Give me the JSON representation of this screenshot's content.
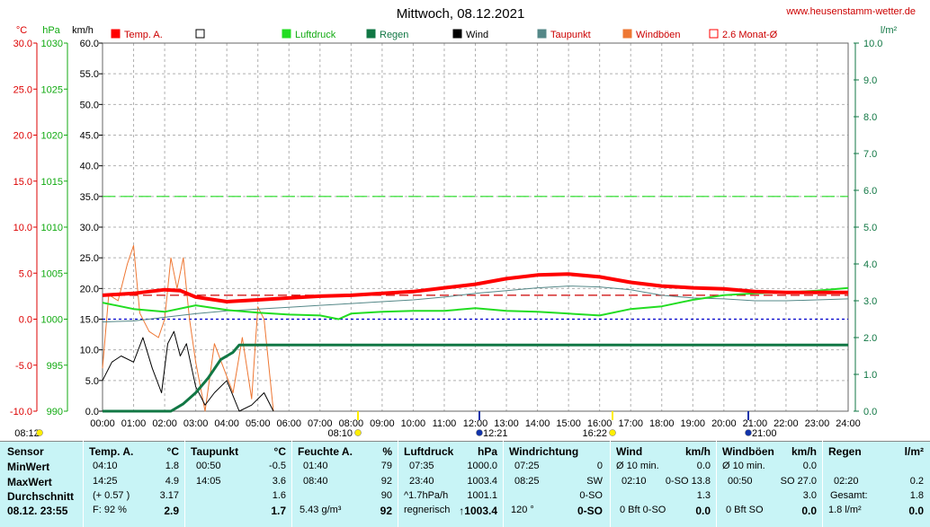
{
  "title": "Mittwoch, 08.12.2021",
  "site": "www.heusenstamm-wetter.de",
  "units": {
    "temp": "°C",
    "pressure": "hPa",
    "wind": "km/h",
    "rain": "l/m²"
  },
  "legend": [
    {
      "label": "Temp. A.",
      "color": "#ff0000",
      "fill": true
    },
    {
      "label": "",
      "color": "#000000",
      "fill": false
    },
    {
      "label": "Luftdruck",
      "color": "#22dd22",
      "fill": true
    },
    {
      "label": "Regen",
      "color": "#117744",
      "fill": true
    },
    {
      "label": "Wind",
      "color": "#000000",
      "fill": true
    },
    {
      "label": "Taupunkt",
      "color": "#558888",
      "fill": true
    },
    {
      "label": "Windböen",
      "color": "#ee7733",
      "fill": true
    },
    {
      "label": "2.6 Monat-Ø",
      "color": "#ff0000",
      "fill": false
    }
  ],
  "events": [
    {
      "label": "08:12",
      "color": "#ffee00"
    },
    {
      "label": "08:10",
      "color": "#ffee00"
    },
    {
      "label": "12:21",
      "color": "#1133aa"
    },
    {
      "label": "16:22",
      "color": "#ffee00"
    },
    {
      "label": "21:00",
      "color": "#1133aa"
    }
  ],
  "stats": {
    "sensor": {
      "head": "Sensor",
      "min": "MinWert",
      "max": "MaxWert",
      "avg": "Durchschnitt",
      "date": "08.12. 23:55"
    },
    "temp": {
      "head": "Temp. A.",
      "unit": "°C",
      "min_t": "04:10",
      "min": "1.8",
      "max_t": "14:25",
      "max": "4.9",
      "avg_d": "(+ 0.57 )",
      "avg": "3.17",
      "hum": "F: 92 %",
      "cur": "2.9"
    },
    "dew": {
      "head": "Taupunkt",
      "unit": "°C",
      "min_t": "00:50",
      "min": "-0.5",
      "max_t": "14:05",
      "max": "3.6",
      "avg": "1.6",
      "cur": "1.7"
    },
    "hum": {
      "head": "Feuchte A.",
      "unit": "%",
      "min_t": "01:40",
      "min": "79",
      "max_t": "08:40",
      "max": "92",
      "avg": "90",
      "abs": "5.43 g/m³",
      "cur": "92"
    },
    "press": {
      "head": "Luftdruck",
      "unit": "hPa",
      "min_t": "07:35",
      "min": "1000.0",
      "max_t": "23:40",
      "max": "1003.4",
      "trend": "^1.7hPa/h",
      "avg": "1001.1",
      "fc": "regnerisch",
      "cur": "↑1003.4"
    },
    "dir": {
      "head": "Windrichtung",
      "min_t": "07:25",
      "min": "0",
      "max_t": "08:25",
      "max": "SW",
      "avg": "0-SO",
      "deg": "120 °",
      "cur": "0-SO"
    },
    "wind": {
      "head": "Wind",
      "unit": "km/h",
      "min_l": "Ø 10 min.",
      "min": "0.0",
      "max_t": "02:10",
      "max": "0-SO 13.8",
      "avg": "1.3",
      "bft": "0 Bft 0-SO",
      "cur": "0.0"
    },
    "gust": {
      "head": "Windböen",
      "unit": "km/h",
      "min_l": "Ø 10 min.",
      "min": "0.0",
      "max_t": "00:50",
      "max": "SO 27.0",
      "avg": "3.0",
      "bft": "0 Bft SO",
      "cur": "0.0"
    },
    "rain": {
      "head": "Regen",
      "unit": "l/m²",
      "max_t": "02:20",
      "max": "0.2",
      "total_l": "Gesamt:",
      "avg": "1.8",
      "day": "1.8 l/m²",
      "cur": "0.0"
    }
  },
  "chart_data": {
    "type": "line",
    "title": "Mittwoch, 08.12.2021",
    "x_ticks": [
      "00:00",
      "01:00",
      "02:00",
      "03:00",
      "04:00",
      "05:00",
      "06:00",
      "07:00",
      "08:00",
      "09:00",
      "10:00",
      "11:00",
      "12:00",
      "13:00",
      "14:00",
      "15:00",
      "16:00",
      "17:00",
      "18:00",
      "19:00",
      "20:00",
      "21:00",
      "22:00",
      "23:00",
      "24:00"
    ],
    "axes": {
      "temp": {
        "label": "°C",
        "ticks": [
          "30.0",
          "25.0",
          "20.0",
          "15.0",
          "10.0",
          "5.0",
          "0.0",
          "-5.0",
          "-10.0"
        ],
        "ylim": [
          -10,
          30
        ]
      },
      "pressure": {
        "label": "hPa",
        "ticks": [
          "1030",
          "1025",
          "1020",
          "1015",
          "1010",
          "1005",
          "1000",
          "995",
          "990"
        ],
        "ylim": [
          990,
          1030
        ]
      },
      "wind": {
        "label": "km/h",
        "ticks": [
          "60.0",
          "55.0",
          "50.0",
          "45.0",
          "40.0",
          "35.0",
          "30.0",
          "25.0",
          "20.0",
          "15.0",
          "10.0",
          "5.0",
          "0.0"
        ],
        "ylim": [
          0,
          60
        ]
      },
      "rain": {
        "label": "l/m²",
        "ticks": [
          "10.0",
          "9.0",
          "8.0",
          "7.0",
          "6.0",
          "5.0",
          "4.0",
          "3.0",
          "2.0",
          "1.0",
          "0.0"
        ],
        "ylim": [
          0,
          10
        ]
      }
    },
    "reference_lines": [
      {
        "name": "2.6 Monat-Ø",
        "axis": "temp",
        "value": 2.6,
        "color": "#cc0000"
      },
      {
        "name": "",
        "axis": "temp",
        "value": 0,
        "color": "#0000cc"
      },
      {
        "name": "",
        "axis": "wind",
        "value": 35,
        "color": "#22dd22"
      }
    ],
    "series": [
      {
        "name": "Temp. A.",
        "axis": "temp",
        "color": "#ff0000",
        "width": 4,
        "x": [
          0,
          1,
          2,
          2.5,
          3,
          4,
          5,
          6,
          7,
          8,
          9,
          10,
          11,
          12,
          13,
          14,
          15,
          16,
          17,
          18,
          19,
          20,
          21,
          22,
          23,
          24
        ],
        "y": [
          2.6,
          2.8,
          3.2,
          3.1,
          2.4,
          1.9,
          2.1,
          2.3,
          2.5,
          2.6,
          2.8,
          3.0,
          3.4,
          3.8,
          4.4,
          4.8,
          4.9,
          4.6,
          4.0,
          3.6,
          3.4,
          3.3,
          3.0,
          2.9,
          2.9,
          2.9
        ]
      },
      {
        "name": "Taupunkt",
        "axis": "temp",
        "color": "#558888",
        "width": 1,
        "x": [
          0,
          1,
          2,
          3,
          4,
          5,
          6,
          7,
          8,
          9,
          10,
          11,
          12,
          13,
          14,
          15,
          16,
          17,
          18,
          19,
          20,
          21,
          22,
          23,
          24
        ],
        "y": [
          -0.3,
          -0.2,
          0.2,
          0.6,
          0.9,
          1.1,
          1.3,
          1.5,
          1.7,
          1.9,
          2.1,
          2.4,
          2.8,
          3.1,
          3.4,
          3.6,
          3.5,
          3.2,
          2.6,
          2.3,
          2.2,
          2.0,
          2.0,
          2.1,
          2.2
        ]
      },
      {
        "name": "Luftdruck",
        "axis": "pressure",
        "color": "#22dd22",
        "width": 2,
        "x": [
          0,
          1,
          2,
          3,
          4,
          5,
          6,
          7,
          7.6,
          8,
          9,
          10,
          11,
          12,
          13,
          14,
          15,
          16,
          17,
          18,
          19,
          20,
          21,
          22,
          23,
          24
        ],
        "y": [
          1001.8,
          1001.1,
          1000.8,
          1001.5,
          1001.0,
          1000.7,
          1000.5,
          1000.4,
          1000.0,
          1000.6,
          1000.8,
          1000.9,
          1000.9,
          1001.2,
          1000.9,
          1000.8,
          1000.6,
          1000.4,
          1001.1,
          1001.4,
          1002.1,
          1002.6,
          1002.8,
          1002.9,
          1003.1,
          1003.4
        ]
      },
      {
        "name": "Regen",
        "axis": "rain",
        "color": "#117744",
        "width": 3,
        "x": [
          0,
          2.2,
          2.6,
          3.0,
          3.4,
          3.8,
          4.2,
          4.4,
          4.6,
          24
        ],
        "y": [
          0,
          0,
          0.2,
          0.5,
          0.9,
          1.4,
          1.6,
          1.8,
          1.8,
          1.8
        ]
      },
      {
        "name": "Wind",
        "axis": "wind",
        "color": "#000000",
        "width": 1,
        "x": [
          0,
          0.3,
          0.6,
          1.0,
          1.3,
          1.6,
          1.9,
          2.1,
          2.3,
          2.5,
          2.7,
          3.0,
          3.3,
          3.6,
          4.0,
          4.4,
          4.8,
          5.2,
          5.5
        ],
        "y": [
          5,
          8,
          9,
          8,
          12,
          7,
          3,
          11,
          13,
          9,
          11,
          4,
          1,
          3,
          5,
          0,
          1,
          3,
          0
        ]
      },
      {
        "name": "Windböen",
        "axis": "wind",
        "color": "#ee7733",
        "width": 1,
        "x": [
          0,
          0.2,
          0.5,
          0.8,
          1.0,
          1.2,
          1.5,
          1.8,
          2.0,
          2.2,
          2.4,
          2.6,
          2.8,
          3.0,
          3.3,
          3.6,
          3.9,
          4.2,
          4.5,
          4.8,
          5.0,
          5.2,
          5.5
        ],
        "y": [
          7,
          19,
          18,
          24,
          27,
          16,
          13,
          12,
          15,
          25,
          20,
          25,
          15,
          8,
          0,
          11,
          7,
          3,
          12,
          2,
          17,
          15,
          0
        ]
      }
    ]
  }
}
